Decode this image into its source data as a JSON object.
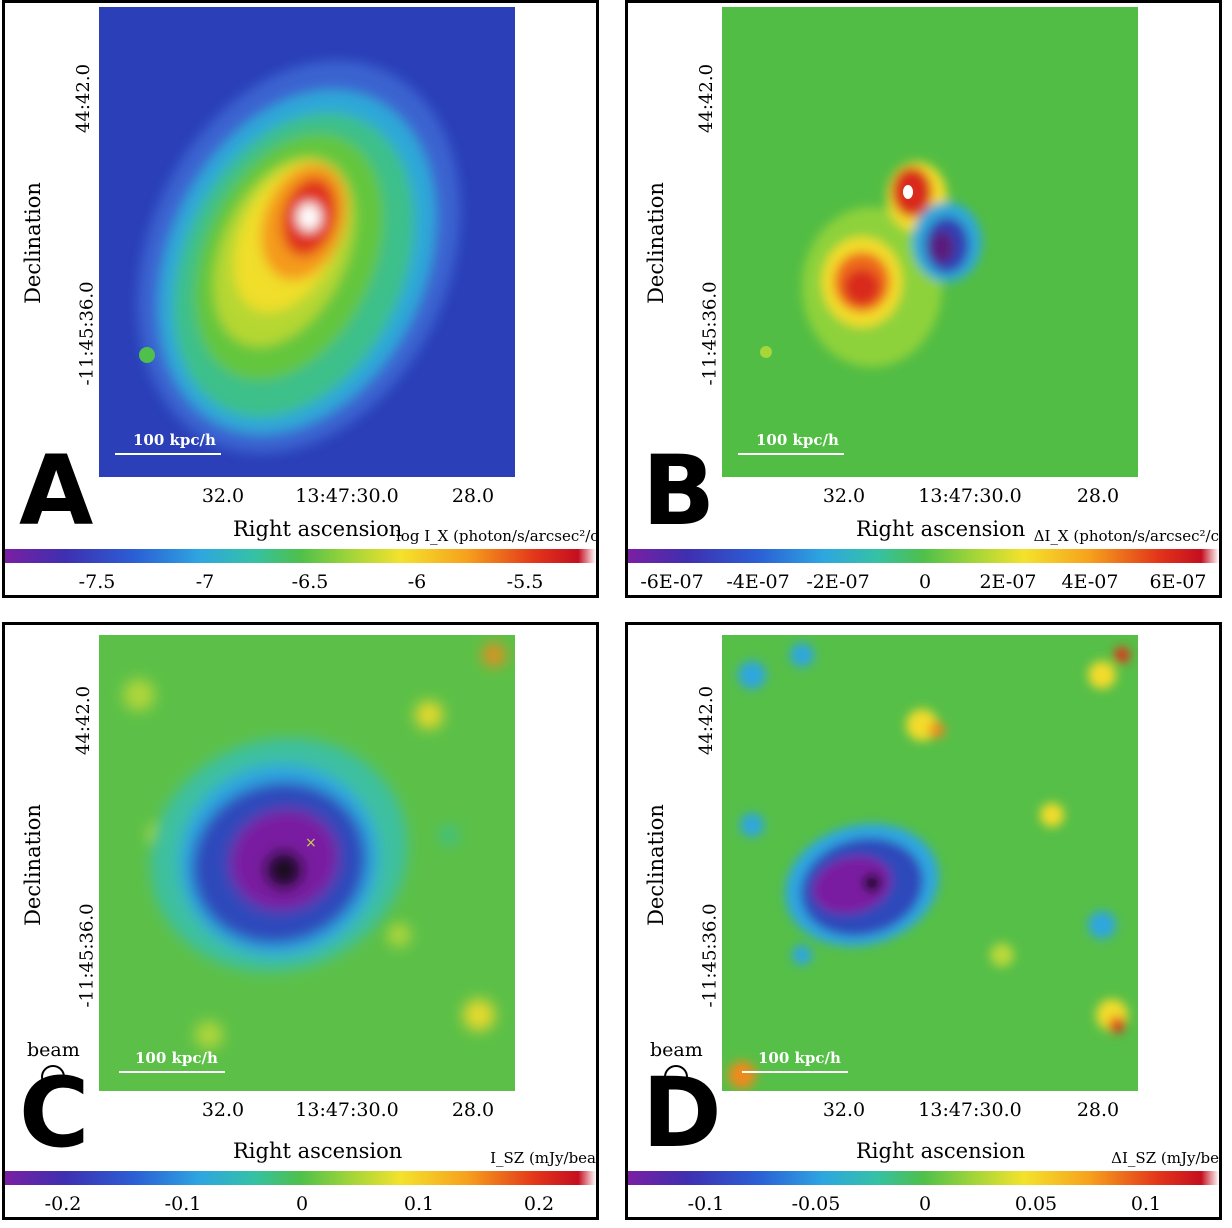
{
  "axes": {
    "ylabel": "Declination",
    "xlabel": "Right ascension",
    "yticks": [
      "44:42.0",
      "-11:45:36.0"
    ],
    "xticks": [
      "32.0",
      "13:47:30.0",
      "28.0"
    ],
    "scalebar": "100 kpc/h",
    "beam_label": "beam"
  },
  "panels": [
    {
      "letter": "A",
      "cb_label": "log I_X (photon/s/arcsec²/c",
      "cb_ticks": [
        "-7.5",
        "-7",
        "-6.5",
        "-6",
        "-5.5"
      ],
      "beam": false
    },
    {
      "letter": "B",
      "cb_label": "ΔI_X (photon/s/arcsec²/c",
      "cb_ticks": [
        "-6E-07",
        "-4E-07",
        "-2E-07",
        "0",
        "2E-07",
        "4E-07",
        "6E-07"
      ],
      "beam": false
    },
    {
      "letter": "C",
      "cb_label": "I_SZ (mJy/bea",
      "cb_ticks": [
        "-0.2",
        "-0.1",
        "0",
        "0.1",
        "0.2"
      ],
      "beam": true
    },
    {
      "letter": "D",
      "cb_label": "ΔI_SZ (mJy/be",
      "cb_ticks": [
        "-0.1",
        "-0.05",
        "0",
        "0.05",
        "0.1"
      ],
      "beam": true
    }
  ],
  "colors": {
    "low": "#7a1fa2",
    "mid": "#4fc04a",
    "high": "#c40f20"
  }
}
